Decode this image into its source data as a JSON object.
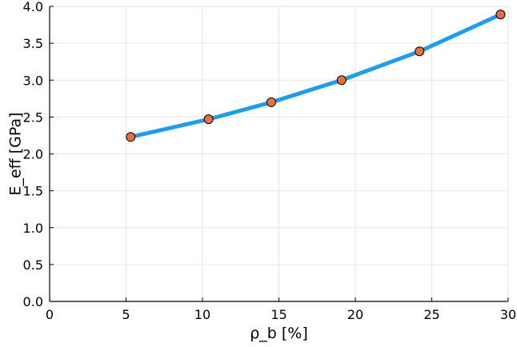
{
  "chart_data": {
    "type": "line",
    "xlabel": "ρ_b [%]",
    "ylabel": "E_eff [GPa]",
    "xlim": [
      0,
      30
    ],
    "ylim": [
      0,
      4
    ],
    "x_ticks": [
      0,
      5,
      10,
      15,
      20,
      25,
      30
    ],
    "x_tick_labels": [
      "0",
      "5",
      "10",
      "15",
      "20",
      "25",
      "30"
    ],
    "y_ticks": [
      0,
      0.5,
      1,
      1.5,
      2,
      2.5,
      3,
      3.5,
      4
    ],
    "y_tick_labels": [
      "0.0",
      "0.5",
      "1.0",
      "1.5",
      "2.0",
      "2.5",
      "3.0",
      "3.5",
      "4.0"
    ],
    "grid": true,
    "legend": "none",
    "series": [
      {
        "x": [
          5.3,
          10.4,
          14.5,
          19.1,
          24.2,
          29.5
        ],
        "y": [
          2.23,
          2.47,
          2.7,
          3.0,
          3.39,
          3.89
        ],
        "line_color": "#1f9bef",
        "marker_color": "#e8703f"
      }
    ]
  }
}
